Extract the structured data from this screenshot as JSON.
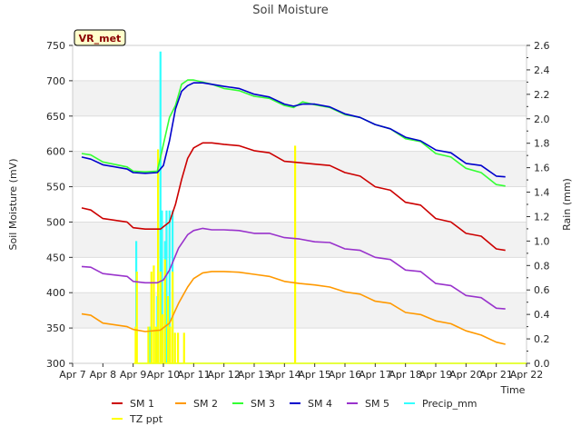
{
  "chart_data": {
    "type": "line",
    "title": "Soil Moisture",
    "badge": "VR_met",
    "xlabel": "Time",
    "ylabel": "Soil Moisture (mV)",
    "y2label": "Rain (mm)",
    "xlim": [
      7,
      22
    ],
    "ylim": [
      300,
      750
    ],
    "y2lim": [
      0,
      2.6
    ],
    "x_ticks": [
      7,
      8,
      9,
      10,
      11,
      12,
      13,
      14,
      15,
      16,
      17,
      18,
      19,
      20,
      21,
      22
    ],
    "x_tick_labels": [
      "Apr 7",
      "Apr 8",
      "Apr 9",
      "Apr 10",
      "Apr 11",
      "Apr 12",
      "Apr 13",
      "Apr 14",
      "Apr 15",
      "Apr 16",
      "Apr 17",
      "Apr 18",
      "Apr 19",
      "Apr 20",
      "Apr 21",
      "Apr 22"
    ],
    "y_ticks": [
      300,
      350,
      400,
      450,
      500,
      550,
      600,
      650,
      700,
      750
    ],
    "y2_ticks": [
      0.0,
      0.2,
      0.4,
      0.6,
      0.8,
      1.0,
      1.2,
      1.4,
      1.6,
      1.8,
      2.0,
      2.2,
      2.4,
      2.6
    ],
    "series": [
      {
        "name": "SM 1",
        "axis": "left",
        "color": "#cc0000",
        "x": [
          7.3,
          7.6,
          8.0,
          8.8,
          9.0,
          9.4,
          9.9,
          10.2,
          10.4,
          10.6,
          10.8,
          11.0,
          11.3,
          11.6,
          12.0,
          12.5,
          13.0,
          13.5,
          14.0,
          14.5,
          15.0,
          15.5,
          16.0,
          16.5,
          17.0,
          17.5,
          18.0,
          18.5,
          19.0,
          19.5,
          20.0,
          20.5,
          21.0,
          21.3
        ],
        "y": [
          520,
          517,
          505,
          500,
          492,
          490,
          490,
          500,
          525,
          560,
          590,
          605,
          612,
          612,
          610,
          608,
          601,
          598,
          586,
          584,
          582,
          580,
          570,
          565,
          550,
          545,
          528,
          524,
          505,
          500,
          484,
          480,
          462,
          460
        ]
      },
      {
        "name": "SM 2",
        "axis": "left",
        "color": "#ff9900",
        "x": [
          7.3,
          7.6,
          8.0,
          8.8,
          9.0,
          9.4,
          9.9,
          10.2,
          10.5,
          10.8,
          11.0,
          11.3,
          11.6,
          12.0,
          12.5,
          13.0,
          13.5,
          14.0,
          14.5,
          15.0,
          15.5,
          16.0,
          16.5,
          17.0,
          17.5,
          18.0,
          18.5,
          19.0,
          19.5,
          20.0,
          20.5,
          21.0,
          21.3
        ],
        "y": [
          370,
          368,
          357,
          352,
          348,
          345,
          347,
          357,
          385,
          408,
          420,
          428,
          430,
          430,
          429,
          426,
          423,
          416,
          413,
          411,
          408,
          401,
          398,
          388,
          385,
          372,
          369,
          360,
          356,
          346,
          340,
          330,
          327
        ]
      },
      {
        "name": "SM 3",
        "axis": "left",
        "color": "#33ff33",
        "x": [
          7.3,
          7.6,
          8.0,
          8.8,
          9.0,
          9.4,
          9.8,
          10.0,
          10.2,
          10.4,
          10.6,
          10.8,
          11.0,
          11.3,
          11.6,
          12.0,
          12.5,
          13.0,
          13.5,
          14.0,
          14.3,
          14.6,
          15.0,
          15.5,
          16.0,
          16.5,
          17.0,
          17.5,
          18.0,
          18.5,
          19.0,
          19.5,
          20.0,
          20.5,
          21.0,
          21.3
        ],
        "y": [
          597,
          595,
          585,
          578,
          572,
          571,
          572,
          610,
          648,
          665,
          695,
          701,
          701,
          698,
          695,
          689,
          686,
          678,
          675,
          665,
          662,
          670,
          666,
          662,
          652,
          648,
          638,
          632,
          618,
          614,
          597,
          592,
          576,
          570,
          553,
          551
        ]
      },
      {
        "name": "SM 4",
        "axis": "left",
        "color": "#0000cc",
        "x": [
          7.3,
          7.6,
          8.0,
          8.8,
          9.0,
          9.4,
          9.8,
          10.0,
          10.2,
          10.4,
          10.6,
          10.8,
          11.0,
          11.3,
          11.6,
          12.0,
          12.5,
          13.0,
          13.5,
          14.0,
          14.3,
          14.6,
          15.0,
          15.5,
          16.0,
          16.5,
          17.0,
          17.5,
          18.0,
          18.5,
          19.0,
          19.5,
          20.0,
          20.5,
          21.0,
          21.3
        ],
        "y": [
          592,
          589,
          581,
          575,
          570,
          569,
          570,
          580,
          615,
          660,
          685,
          693,
          697,
          697,
          695,
          692,
          689,
          681,
          677,
          667,
          664,
          667,
          667,
          663,
          653,
          648,
          638,
          632,
          620,
          615,
          602,
          598,
          583,
          580,
          565,
          564
        ]
      },
      {
        "name": "SM 5",
        "axis": "left",
        "color": "#9933cc",
        "x": [
          7.3,
          7.6,
          8.0,
          8.8,
          9.0,
          9.4,
          9.8,
          10.0,
          10.2,
          10.5,
          10.8,
          11.0,
          11.3,
          11.6,
          12.0,
          12.5,
          13.0,
          13.5,
          14.0,
          14.5,
          15.0,
          15.5,
          16.0,
          16.5,
          17.0,
          17.5,
          18.0,
          18.5,
          19.0,
          19.5,
          20.0,
          20.5,
          21.0,
          21.3
        ],
        "y": [
          437,
          436,
          427,
          423,
          416,
          414,
          414,
          418,
          432,
          463,
          482,
          488,
          491,
          489,
          489,
          488,
          484,
          484,
          478,
          476,
          472,
          471,
          462,
          460,
          450,
          447,
          432,
          430,
          413,
          410,
          396,
          393,
          378,
          377
        ]
      },
      {
        "name": "Precip_mm",
        "axis": "right",
        "color": "#33ffff",
        "type": "bar",
        "x": [
          9.1,
          9.55,
          9.8,
          9.9,
          9.95,
          10.05,
          10.1,
          10.2,
          10.3
        ],
        "y": [
          1.0,
          0.3,
          0.55,
          2.55,
          1.25,
          1.0,
          1.25,
          1.25,
          1.25
        ]
      },
      {
        "name": "TZ ppt",
        "axis": "right",
        "color": "#ffff00",
        "type": "bar",
        "x": [
          9.08,
          9.12,
          9.5,
          9.6,
          9.68,
          9.75,
          9.82,
          9.9,
          9.97,
          10.05,
          10.15,
          10.22,
          10.3,
          10.38,
          10.48,
          10.68,
          14.35
        ],
        "y": [
          0.3,
          0.75,
          0.3,
          0.75,
          0.8,
          0.3,
          1.75,
          0.75,
          0.4,
          0.85,
          0.55,
          0.3,
          0.75,
          0.25,
          0.25,
          0.25,
          1.78
        ]
      }
    ],
    "legend_position": "bottom"
  }
}
